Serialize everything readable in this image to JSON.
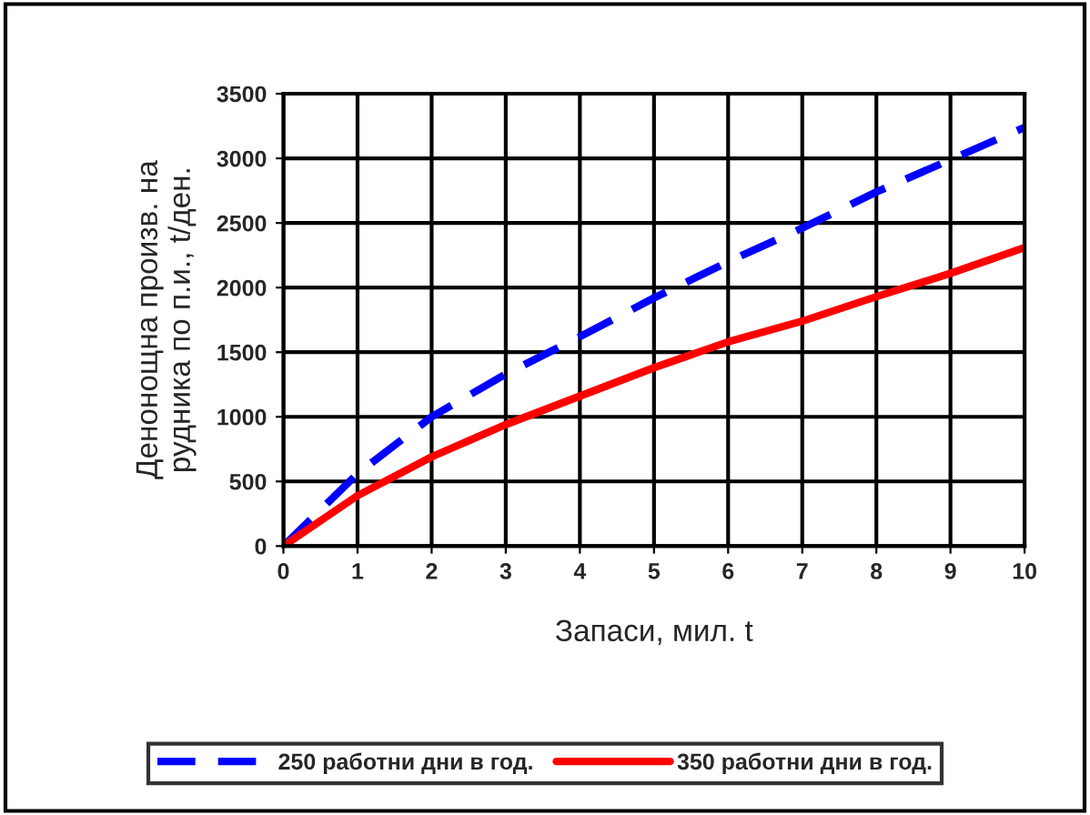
{
  "chart_data": {
    "type": "line",
    "xlabel": "Запаси, мил. t",
    "ylabel": "Денонощна произв. на\nрудника по п.и., t/ден.",
    "x": [
      0,
      1,
      2,
      3,
      4,
      5,
      6,
      7,
      8,
      9,
      10
    ],
    "series": [
      {
        "name": "250 работни дни в год.",
        "color": "#0000ff",
        "line_style": "dashed",
        "values": [
          0,
          560,
          1000,
          1330,
          1620,
          1920,
          2200,
          2460,
          2740,
          2990,
          3240
        ]
      },
      {
        "name": "350 работни дни в год.",
        "color": "#ff0000",
        "line_style": "solid",
        "values": [
          0,
          390,
          690,
          940,
          1160,
          1380,
          1580,
          1740,
          1930,
          2110,
          2310
        ]
      }
    ],
    "xlim": [
      0,
      10
    ],
    "xticks": [
      0,
      1,
      2,
      3,
      4,
      5,
      6,
      7,
      8,
      9,
      10
    ],
    "ylim": [
      0,
      3500
    ],
    "yticks": [
      0,
      500,
      1000,
      1500,
      2000,
      2500,
      3000,
      3500
    ],
    "grid": true,
    "legend": "bottom",
    "marker": "none"
  }
}
